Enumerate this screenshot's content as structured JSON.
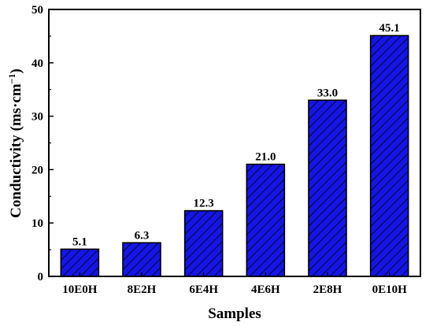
{
  "chart_data": {
    "type": "bar",
    "categories": [
      "10E0H",
      "8E2H",
      "6E4H",
      "4E6H",
      "2E8H",
      "0E10H"
    ],
    "values": [
      5.1,
      6.3,
      12.3,
      21.0,
      33.0,
      45.1
    ],
    "data_labels": [
      "5.1",
      "6.3",
      "12.3",
      "21.0",
      "33.0",
      "45.1"
    ],
    "title": "",
    "xlabel": "Samples",
    "ylabel": "Conductivity (ms·cm",
    "ylabel_sup": "−1",
    "ylabel_close": ")",
    "ylim": [
      0,
      50
    ],
    "yticks": [
      0,
      10,
      20,
      30,
      40,
      50
    ],
    "ytick_labels": [
      "0",
      "10",
      "20",
      "30",
      "40",
      "50"
    ],
    "grid": false,
    "legend": "none",
    "bar_color": "#1515e6",
    "hatch_color": "#000000",
    "hatch": "diagonal"
  }
}
